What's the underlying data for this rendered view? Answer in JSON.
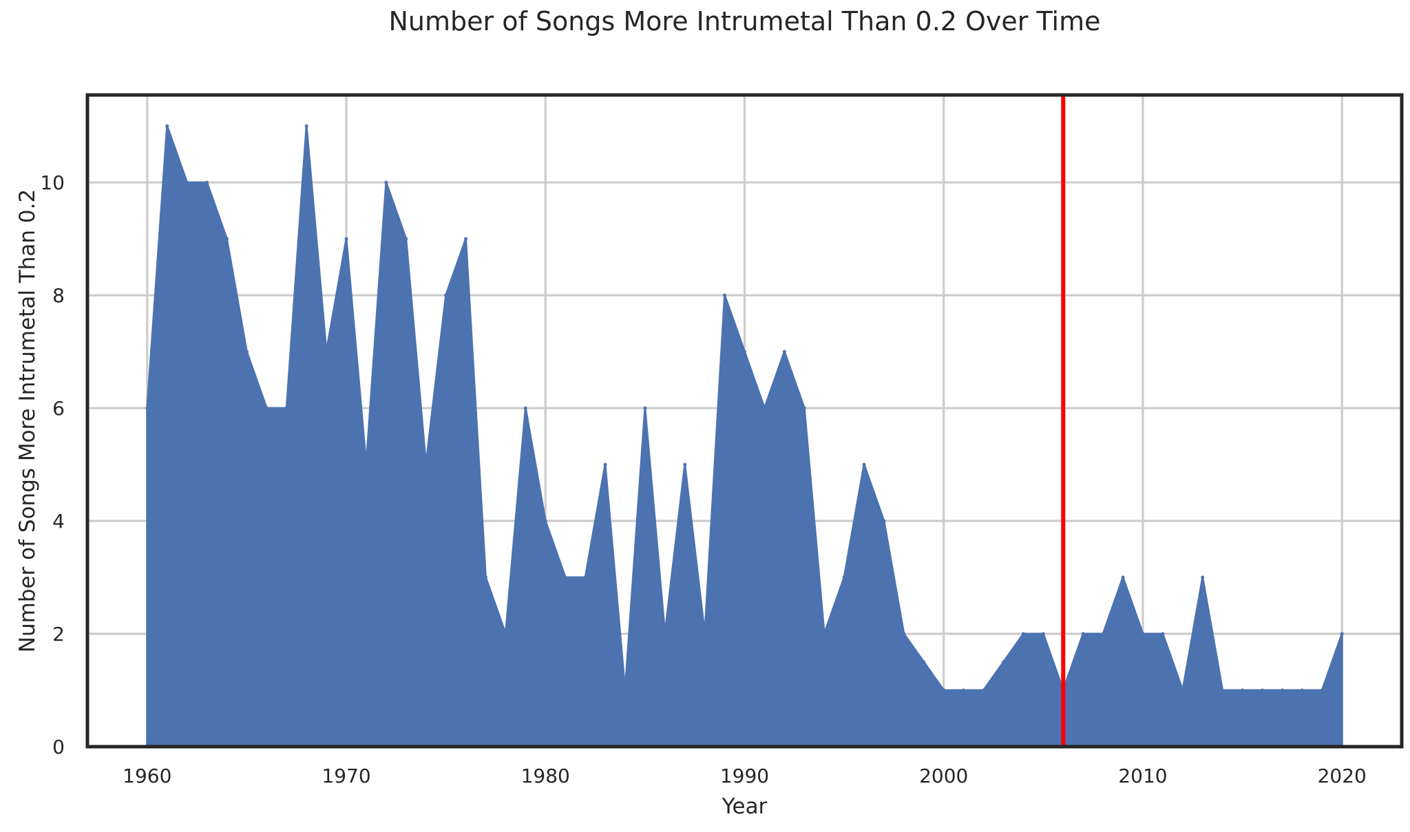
{
  "chart_data": {
    "type": "area",
    "title": "Number of Songs More Intrumetal Than 0.2 Over Time",
    "xlabel": "Year",
    "ylabel": "Number of Songs More Intrumetal Than 0.2",
    "xlim": [
      1957,
      2023
    ],
    "ylim": [
      0,
      11.55
    ],
    "grid": true,
    "legend": "none",
    "xticks": [
      1960,
      1970,
      1980,
      1990,
      2000,
      2010,
      2020
    ],
    "xtick_labels": [
      "1960",
      "1970",
      "1980",
      "1990",
      "2000",
      "2010",
      "2020"
    ],
    "yticks": [
      0,
      2,
      4,
      6,
      8,
      10
    ],
    "ytick_labels": [
      "0",
      "2",
      "4",
      "6",
      "8",
      "10"
    ],
    "series": [
      {
        "color": "#4c72b0",
        "x": [
          1960,
          1961,
          1962,
          1963,
          1964,
          1965,
          1966,
          1967,
          1968,
          1969,
          1970,
          1971,
          1972,
          1973,
          1974,
          1975,
          1976,
          1977,
          1978,
          1979,
          1980,
          1981,
          1982,
          1983,
          1984,
          1985,
          1986,
          1987,
          1988,
          1989,
          1990,
          1991,
          1992,
          1993,
          1994,
          1995,
          1996,
          1997,
          1998,
          1999,
          2000,
          2001,
          2002,
          2003,
          2004,
          2005,
          2006,
          2007,
          2008,
          2009,
          2010,
          2011,
          2012,
          2013,
          2014,
          2015,
          2016,
          2017,
          2018,
          2019,
          2020
        ],
        "values": [
          6,
          11,
          10,
          10,
          9,
          7,
          6,
          6,
          11,
          7,
          9,
          5,
          10,
          9,
          5,
          8,
          9,
          3,
          2,
          6,
          4,
          3,
          3,
          5,
          1,
          6,
          2,
          5,
          2,
          8,
          7,
          6,
          7,
          6,
          2,
          3,
          5,
          4,
          2,
          1.5,
          1,
          1,
          1,
          1.5,
          2,
          2,
          1,
          2,
          2,
          3,
          2,
          2,
          1,
          3,
          1,
          1,
          1,
          1,
          1,
          1,
          2
        ]
      }
    ],
    "reference_line": {
      "x": 2006,
      "color": "#ff0000"
    }
  }
}
